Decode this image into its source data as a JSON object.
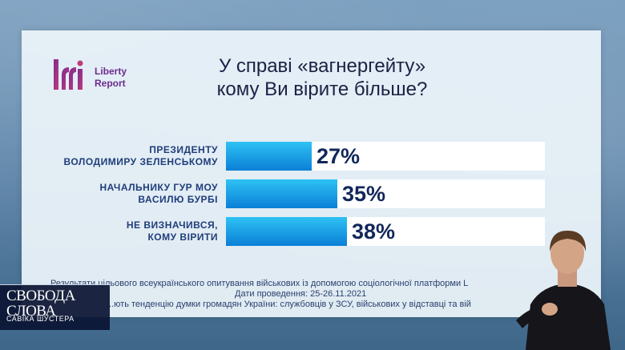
{
  "logo": {
    "line1": "Liberty",
    "line2": "Report",
    "color": "#6d2b8f"
  },
  "title": {
    "line1": "У справі «вагнергейту»",
    "line2": "кому Ви вірите більше?"
  },
  "chart_data": {
    "type": "bar",
    "orientation": "horizontal",
    "categories": [
      [
        "ПРЕЗИДЕНТУ",
        "ВОЛОДИМИРУ ЗЕЛЕНСЬКОМУ"
      ],
      [
        "НАЧАЛЬНИКУ ГУР МОУ",
        "ВАСИЛЮ БУРБІ"
      ],
      [
        "НЕ ВИЗНАЧИВСЯ,",
        "КОМУ ВІРИТИ"
      ]
    ],
    "values": [
      27,
      35,
      38
    ],
    "value_labels": [
      "27%",
      "35%",
      "38%"
    ],
    "xlim": [
      0,
      100
    ],
    "bar_color": "#1aa3e8"
  },
  "footnote": {
    "line1": "Результати цільового всеукраїнського опитування військових із допомогою соціологічної платформи L",
    "line2": "Дати проведення: 25-26.11.2021",
    "line3": "...ють тенденцію думки громадян України: службовців у ЗСУ, військових у відставці та вій"
  },
  "show": {
    "line1": "СВОБОДА",
    "line2": "СЛОВА",
    "line3": "САВІКА ШУСТЕРА"
  }
}
